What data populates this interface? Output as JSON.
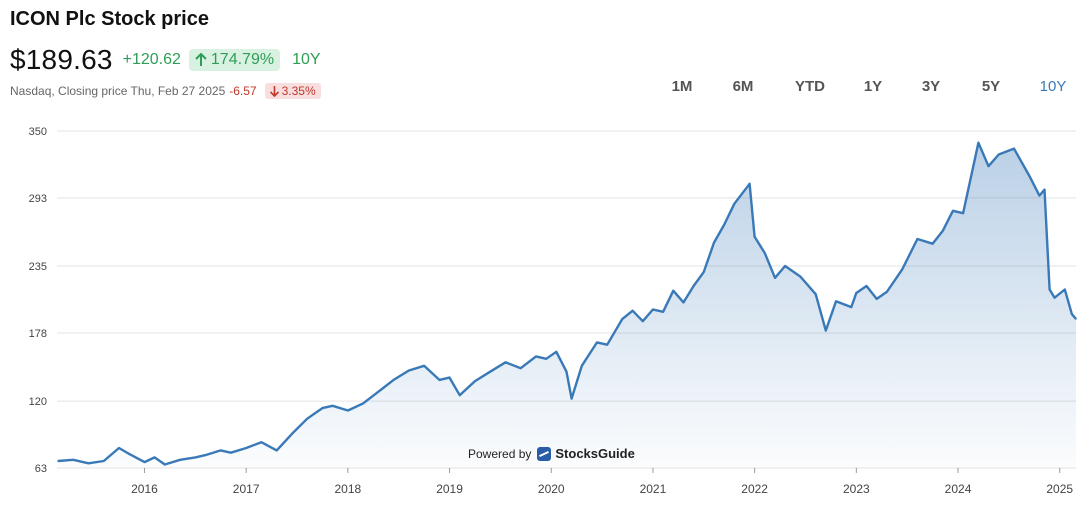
{
  "header": {
    "title": "ICON Plc Stock price",
    "price": "$189.63",
    "change": "+120.62",
    "change_pct": "174.79%",
    "period": "10Y",
    "exchange_line": "Nasdaq, Closing price Thu, Feb 27 2025",
    "day_change": "-6.57",
    "day_change_pct": "3.35%"
  },
  "ranges": [
    "1M",
    "6M",
    "YTD",
    "1Y",
    "3Y",
    "5Y",
    "10Y"
  ],
  "active_range": "10Y",
  "powered_by": {
    "label": "Powered by",
    "brand": "StocksGuide"
  },
  "colors": {
    "line": "#3a79b8",
    "positive": "#2e9e57",
    "negative": "#c0392b",
    "active_range": "#3a79b8"
  },
  "icons": {
    "up": "arrow-up-icon",
    "down": "arrow-down-icon",
    "brand": "stocksguide-logo-icon"
  },
  "chart_data": {
    "type": "area",
    "ylim": [
      63,
      350
    ],
    "yticks": [
      63,
      120,
      178,
      235,
      293,
      350
    ],
    "xticks": [
      "2016",
      "2017",
      "2018",
      "2019",
      "2020",
      "2021",
      "2022",
      "2023",
      "2024",
      "2025"
    ],
    "xlim": [
      2015.14,
      2025.16
    ],
    "grid": true,
    "x": [
      2015.15,
      2015.3,
      2015.45,
      2015.6,
      2015.75,
      2015.85,
      2016.0,
      2016.1,
      2016.2,
      2016.35,
      2016.5,
      2016.6,
      2016.75,
      2016.85,
      2017.0,
      2017.15,
      2017.3,
      2017.45,
      2017.6,
      2017.75,
      2017.85,
      2018.0,
      2018.15,
      2018.3,
      2018.45,
      2018.6,
      2018.75,
      2018.9,
      2019.0,
      2019.1,
      2019.25,
      2019.4,
      2019.55,
      2019.7,
      2019.85,
      2019.95,
      2020.05,
      2020.15,
      2020.2,
      2020.3,
      2020.45,
      2020.55,
      2020.7,
      2020.8,
      2020.9,
      2021.0,
      2021.1,
      2021.2,
      2021.3,
      2021.4,
      2021.5,
      2021.6,
      2021.7,
      2021.8,
      2021.95,
      2022.0,
      2022.1,
      2022.2,
      2022.3,
      2022.45,
      2022.6,
      2022.7,
      2022.8,
      2022.95,
      2023.0,
      2023.1,
      2023.2,
      2023.3,
      2023.45,
      2023.6,
      2023.75,
      2023.85,
      2023.95,
      2024.05,
      2024.2,
      2024.3,
      2024.4,
      2024.55,
      2024.7,
      2024.8,
      2024.85,
      2024.9,
      2024.95,
      2025.05,
      2025.12,
      2025.16
    ],
    "values": [
      69,
      70,
      67,
      69,
      80,
      75,
      68,
      72,
      66,
      70,
      72,
      74,
      78,
      76,
      80,
      85,
      78,
      92,
      105,
      114,
      116,
      112,
      118,
      128,
      138,
      146,
      150,
      138,
      140,
      125,
      137,
      145,
      153,
      148,
      158,
      156,
      162,
      145,
      122,
      150,
      170,
      168,
      190,
      197,
      188,
      198,
      196,
      214,
      204,
      218,
      230,
      255,
      270,
      288,
      305,
      260,
      246,
      225,
      235,
      226,
      211,
      180,
      205,
      200,
      212,
      218,
      207,
      213,
      232,
      258,
      254,
      265,
      282,
      280,
      340,
      320,
      330,
      335,
      312,
      295,
      300,
      215,
      208,
      215,
      194,
      190
    ]
  }
}
